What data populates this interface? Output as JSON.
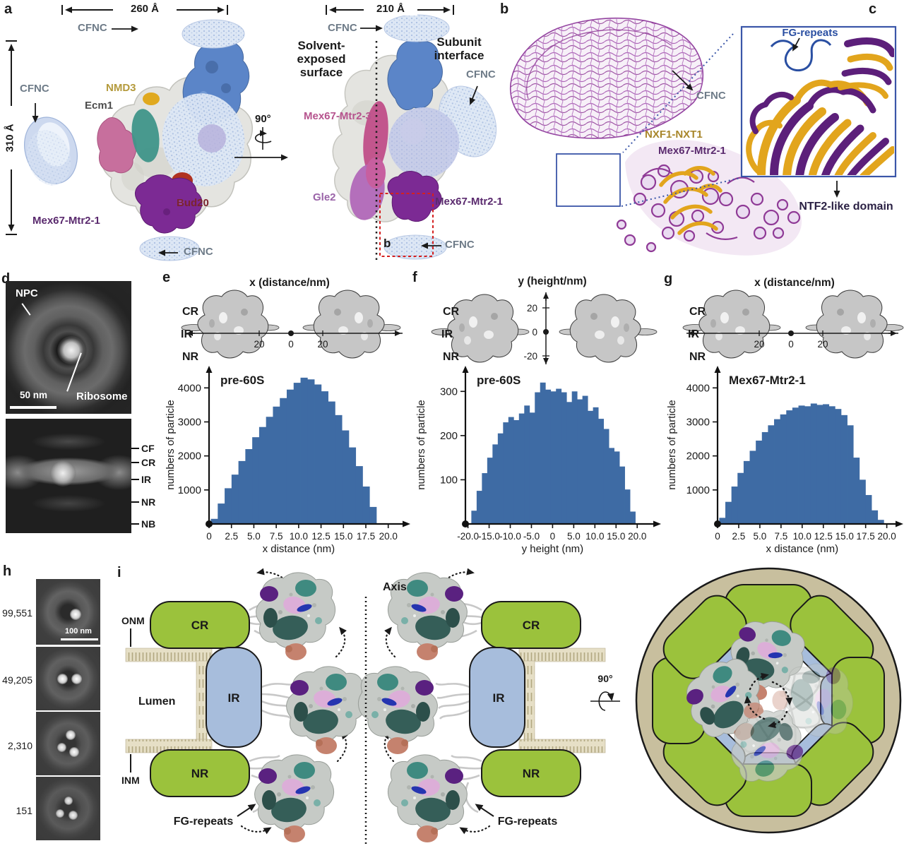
{
  "letters": {
    "a": "a",
    "b": "b",
    "c": "c",
    "d": "d",
    "e": "e",
    "f": "f",
    "g": "g",
    "h": "h",
    "i": "i"
  },
  "colors": {
    "bar": "#3e6ba4",
    "green": "#9bc23c",
    "ring_blue": "#a7bddc",
    "envelope_beige": "#c8bf9e",
    "membrane": "#e6dfc6",
    "mesh_purple": "#8f3a96",
    "ribbon_gold": "#e2a51d",
    "ribbon_purple": "#5c1f7a",
    "cfnc_text": "#6e7b88"
  },
  "panel_a": {
    "dim_width_left": "260 Å",
    "dim_height": "310 Å",
    "dim_width_right": "210 Å",
    "rotate": "90°",
    "cfnc": "CFNC",
    "nmd3": "NMD3",
    "ecm1": "Ecm1",
    "bud20": "Bud20",
    "mex67_mtr2_1": "Mex67-Mtr2-1",
    "mex67_mtr2_3": "Mex67-Mtr2-3",
    "gle2": "Gle2",
    "solvent": "Solvent-exposed\nsurface",
    "subunit": "Subunit\ninterface",
    "box_label": "b"
  },
  "panel_b": {
    "cfnc": "CFNC",
    "nxf1_nxt1": "NXF1-NXT1",
    "mex67_mtr2_1": "Mex67-Mtr2-1"
  },
  "panel_c": {
    "fg_repeats": "FG-repeats",
    "ntf2": "NTF2-like domain"
  },
  "panel_d": {
    "npc": "NPC",
    "ribosome": "Ribosome",
    "scale": "50 nm",
    "ticks": [
      "CF",
      "CR",
      "IR",
      "NR",
      "NB"
    ]
  },
  "mini": {
    "cr": "CR",
    "ir": "IR",
    "nr": "NR",
    "e_title": "x (distance/nm)",
    "f_title": "y (height/nm)",
    "g_title": "x (distance/nm)",
    "h_ticks": [
      "20",
      "0",
      "20"
    ],
    "v_ticks": [
      "20",
      "0",
      "-20"
    ]
  },
  "chart_data": [
    {
      "id": "e",
      "type": "bar",
      "title": "pre-60S",
      "ylabel": "numbers of particle",
      "xlabel": "x distance (nm)",
      "bar_color": "#3e6ba4",
      "bin_start": 0.2,
      "bin_width": 0.77,
      "values": [
        150,
        600,
        1050,
        1450,
        1850,
        2200,
        2550,
        2850,
        3150,
        3450,
        3700,
        3950,
        4150,
        4300,
        4250,
        4100,
        3900,
        3600,
        3200,
        2750,
        2250,
        1700,
        1100,
        500
      ],
      "xmin": 0,
      "xmax": 21.6,
      "ymax": 4650,
      "yticks": [
        1000,
        2000,
        3000,
        4000
      ],
      "ytick_labels": [
        "1000",
        "2000",
        "3000",
        "4000"
      ],
      "xticks": [
        0,
        2.5,
        5,
        7.5,
        10,
        12.5,
        15,
        17.5,
        20
      ],
      "xtick_labels": [
        "0",
        "2.5",
        "5.0",
        "7.5",
        "10.0",
        "12.5",
        "15.0",
        "17.5",
        "20.0"
      ],
      "margins": {
        "l": 64,
        "r": 14,
        "t": 10,
        "b": 44
      }
    },
    {
      "id": "f",
      "type": "bar",
      "title": "pre-60S",
      "ylabel": "numbers of particle",
      "xlabel": "y height (nm)",
      "bar_color": "#3e6ba4",
      "bin_start": -19.2,
      "bin_width": 1.25,
      "values": [
        30,
        75,
        115,
        150,
        180,
        205,
        230,
        242,
        235,
        250,
        268,
        252,
        298,
        320,
        304,
        300,
        306,
        298,
        276,
        300,
        282,
        290,
        256,
        264,
        238,
        215,
        172,
        164,
        130,
        78,
        28
      ],
      "xmin": -20.6,
      "xmax": 23.8,
      "ymax": 358,
      "yticks": [
        100,
        200,
        300
      ],
      "ytick_labels": [
        "100",
        "200",
        "300"
      ],
      "xticks": [
        -20,
        -15,
        -10,
        -5,
        0,
        5,
        10,
        15,
        20
      ],
      "xtick_labels": [
        "-20.0",
        "-15.0",
        "-10.0",
        "-5.0",
        "0",
        "5.0",
        "10.0",
        "15.0",
        "20.0"
      ],
      "margins": {
        "l": 72,
        "r": 14,
        "t": 10,
        "b": 44
      }
    },
    {
      "id": "g",
      "type": "bar",
      "title": "Mex67-Mtr2-1",
      "ylabel": "numbers of particle",
      "xlabel": "x distance (nm)",
      "bar_color": "#3e6ba4",
      "bin_start": 0.2,
      "bin_width": 0.72,
      "values": [
        180,
        650,
        1100,
        1500,
        1850,
        2150,
        2450,
        2700,
        2900,
        3080,
        3220,
        3340,
        3420,
        3480,
        3460,
        3540,
        3500,
        3520,
        3460,
        3380,
        3200,
        2900,
        1950,
        1300,
        850,
        400,
        120
      ],
      "xmin": 0,
      "xmax": 21.2,
      "ymax": 4650,
      "yticks": [
        1000,
        2000,
        3000,
        4000
      ],
      "ytick_labels": [
        "1000",
        "2000",
        "3000",
        "4000"
      ],
      "xticks": [
        0,
        2.5,
        5,
        7.5,
        10,
        12.5,
        15,
        17.5,
        20
      ],
      "xtick_labels": [
        "0",
        "2.5",
        "5.0",
        "7.5",
        "10.0",
        "12.5",
        "15.0",
        "17.5",
        "20.0"
      ],
      "margins": {
        "l": 74,
        "r": 12,
        "t": 10,
        "b": 44
      }
    }
  ],
  "panel_h": {
    "counts": [
      "99,551",
      "49,205",
      "2,310",
      "151"
    ],
    "scale": "100 nm"
  },
  "panel_i": {
    "onm": "ONM",
    "lumen": "Lumen",
    "inm": "INM",
    "axis": "Axis",
    "cr": "CR",
    "ir": "IR",
    "nr": "NR",
    "fg_repeats": "FG-repeats",
    "rotate": "90°"
  }
}
